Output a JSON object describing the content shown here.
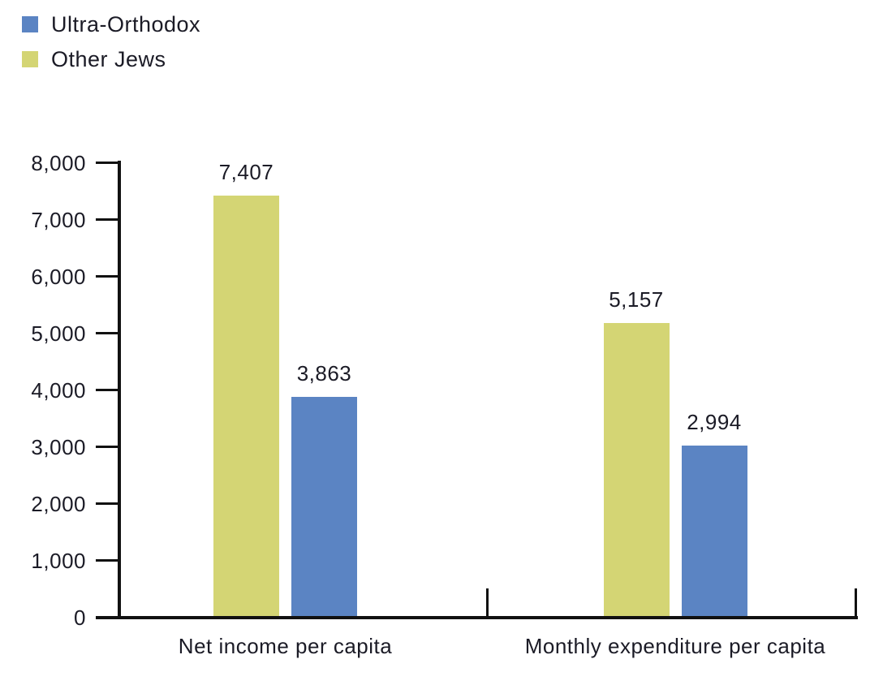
{
  "legend": {
    "items": [
      {
        "label": "Ultra-Orthodox",
        "color": "#5B84C3",
        "icon": "legend-swatch-blue"
      },
      {
        "label": "Other Jews",
        "color": "#D4D574",
        "icon": "legend-swatch-yellow"
      }
    ]
  },
  "chart_data": {
    "type": "bar",
    "categories": [
      "Net income per capita",
      "Monthly expenditure per capita"
    ],
    "series": [
      {
        "name": "Other Jews",
        "color": "#D4D574",
        "values": [
          7407,
          5157
        ]
      },
      {
        "name": "Ultra-Orthodox",
        "color": "#5B84C3",
        "values": [
          3863,
          2994
        ]
      }
    ],
    "value_labels": [
      [
        "7,407",
        "5,157"
      ],
      [
        "3,863",
        "2,994"
      ]
    ],
    "y_ticks": [
      "0",
      "1,000",
      "2,000",
      "3,000",
      "4,000",
      "5,000",
      "6,000",
      "7,000",
      "8,000"
    ],
    "ylim": [
      0,
      8000
    ],
    "title": "",
    "xlabel": "",
    "ylabel": "",
    "grid": false,
    "legend_position": "top-left",
    "axis_color": "#111111",
    "text_color": "#1b1b26"
  }
}
